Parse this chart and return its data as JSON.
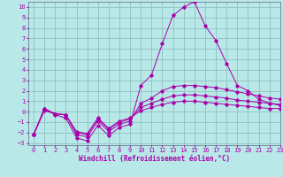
{
  "xlabel": "Windchill (Refroidissement éolien,°C)",
  "bg_color": "#b8e8e8",
  "grid_color": "#90c0c0",
  "line_color": "#aa00aa",
  "spine_color": "#666688",
  "xlim": [
    -0.5,
    23
  ],
  "ylim": [
    -3.2,
    10.5
  ],
  "yticks": [
    -3,
    -2,
    -1,
    0,
    1,
    2,
    3,
    4,
    5,
    6,
    7,
    8,
    9,
    10
  ],
  "xticks": [
    0,
    1,
    2,
    3,
    4,
    5,
    6,
    7,
    8,
    9,
    10,
    11,
    12,
    13,
    14,
    15,
    16,
    17,
    18,
    19,
    20,
    21,
    22,
    23
  ],
  "series": [
    {
      "x": [
        0,
        1,
        2,
        3,
        4,
        5,
        6,
        7,
        8,
        9,
        10,
        11,
        12,
        13,
        14,
        15,
        16,
        17,
        18,
        19,
        20,
        21,
        22,
        23
      ],
      "y": [
        -2.2,
        0.3,
        -0.3,
        -0.6,
        -2.5,
        -2.8,
        -1.3,
        -2.3,
        -1.5,
        -1.2,
        2.5,
        3.5,
        6.5,
        9.2,
        10.0,
        10.5,
        8.2,
        6.8,
        4.6,
        2.5,
        2.0,
        1.2,
        0.8,
        0.6
      ]
    },
    {
      "x": [
        0,
        1,
        2,
        3,
        4,
        5,
        6,
        7,
        8,
        9,
        10,
        11,
        12,
        13,
        14,
        15,
        16,
        17,
        18,
        19,
        20,
        21,
        22,
        23
      ],
      "y": [
        -2.2,
        0.3,
        -0.2,
        -0.3,
        -2.2,
        -2.4,
        -0.9,
        -1.9,
        -1.2,
        -0.9,
        0.8,
        1.3,
        2.0,
        2.4,
        2.5,
        2.5,
        2.4,
        2.3,
        2.1,
        1.9,
        1.7,
        1.5,
        1.3,
        1.2
      ]
    },
    {
      "x": [
        0,
        1,
        2,
        3,
        4,
        5,
        6,
        7,
        8,
        9,
        10,
        11,
        12,
        13,
        14,
        15,
        16,
        17,
        18,
        19,
        20,
        21,
        22,
        23
      ],
      "y": [
        -2.2,
        0.2,
        -0.2,
        -0.3,
        -2.0,
        -2.2,
        -0.7,
        -1.7,
        -1.0,
        -0.7,
        0.4,
        0.8,
        1.2,
        1.5,
        1.6,
        1.6,
        1.5,
        1.4,
        1.3,
        1.1,
        1.0,
        0.9,
        0.8,
        0.7
      ]
    },
    {
      "x": [
        0,
        1,
        2,
        3,
        4,
        5,
        6,
        7,
        8,
        9,
        10,
        11,
        12,
        13,
        14,
        15,
        16,
        17,
        18,
        19,
        20,
        21,
        22,
        23
      ],
      "y": [
        -2.2,
        0.1,
        -0.2,
        -0.3,
        -1.9,
        -2.1,
        -0.6,
        -1.6,
        -0.9,
        -0.6,
        0.1,
        0.4,
        0.7,
        0.9,
        1.0,
        1.0,
        0.9,
        0.8,
        0.7,
        0.6,
        0.5,
        0.4,
        0.3,
        0.3
      ]
    }
  ],
  "title_fontsize": 6.0,
  "axis_fontsize": 5.5,
  "tick_fontsize": 5.0
}
